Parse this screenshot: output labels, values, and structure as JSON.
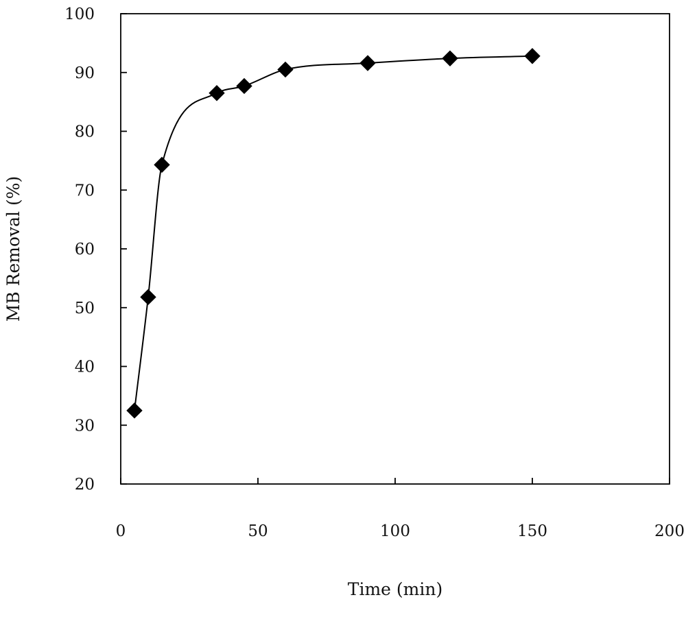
{
  "chart_data": {
    "type": "scatter",
    "title": "",
    "xlabel": "Time (min)",
    "ylabel": "MB Removal (%)",
    "xlim": [
      0,
      200
    ],
    "ylim": [
      20,
      100
    ],
    "xticks": [
      0,
      50,
      100,
      150,
      200
    ],
    "yticks": [
      20,
      30,
      40,
      50,
      60,
      70,
      80,
      90,
      100
    ],
    "xtick_labels": [
      "0",
      "50",
      "100",
      "150",
      "200"
    ],
    "ytick_labels": [
      "20",
      "30",
      "40",
      "50",
      "60",
      "70",
      "80",
      "90",
      "100"
    ],
    "grid": false,
    "legend": "none",
    "marker": "diamond",
    "line": "smooth",
    "color": "#000000",
    "series": [
      {
        "x": [
          5,
          10,
          15,
          35,
          45,
          60,
          90,
          120,
          150
        ],
        "y": [
          32.5,
          51.8,
          74.3,
          86.5,
          87.7,
          90.5,
          91.6,
          92.4,
          92.8
        ]
      }
    ]
  }
}
